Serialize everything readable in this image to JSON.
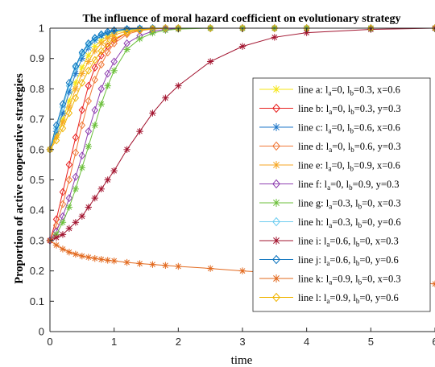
{
  "chart_data": {
    "type": "line",
    "title": "The influence of moral hazard coefficient on evolutionary strategy",
    "xlabel": "time",
    "ylabel": "Proportion of active cooperative strategies",
    "xlim": [
      0,
      6
    ],
    "ylim": [
      0,
      1
    ],
    "xticks": [
      "0",
      "1",
      "2",
      "3",
      "4",
      "5",
      "6"
    ],
    "yticks": [
      "0",
      "0.1",
      "0.2",
      "0.3",
      "0.4",
      "0.5",
      "0.6",
      "0.7",
      "0.8",
      "0.9",
      "1"
    ],
    "grid": false,
    "legend_position": "right",
    "x": [
      0,
      0.1,
      0.2,
      0.3,
      0.4,
      0.5,
      0.6,
      0.7,
      0.8,
      0.9,
      1.0,
      1.2,
      1.4,
      1.6,
      1.8,
      2.0,
      2.5,
      3.0,
      3.5,
      4.0,
      5.0,
      6.0
    ],
    "series": [
      {
        "name": "line a",
        "label_parts": [
          [
            "line a: l",
            ""
          ],
          [
            "a",
            "sub"
          ],
          [
            "=0, l",
            ""
          ],
          [
            "b",
            "sub"
          ],
          [
            "=0.3, x=0.6",
            ""
          ]
        ],
        "color": "#f5e614",
        "marker": "asterisk",
        "values": [
          0.6,
          0.65,
          0.7,
          0.76,
          0.82,
          0.87,
          0.91,
          0.94,
          0.96,
          0.975,
          0.985,
          0.993,
          0.997,
          0.999,
          1,
          1,
          1,
          1,
          1,
          1,
          1,
          1
        ]
      },
      {
        "name": "line b",
        "label_parts": [
          [
            "line b: l",
            ""
          ],
          [
            "a",
            "sub"
          ],
          [
            "=0, l",
            ""
          ],
          [
            "b",
            "sub"
          ],
          [
            "=0.3, y=0.3",
            ""
          ]
        ],
        "color": "#e8201f",
        "marker": "diamond",
        "values": [
          0.3,
          0.37,
          0.46,
          0.55,
          0.64,
          0.73,
          0.81,
          0.87,
          0.91,
          0.94,
          0.96,
          0.985,
          0.994,
          0.998,
          1,
          1,
          1,
          1,
          1,
          1,
          1,
          1
        ]
      },
      {
        "name": "line c",
        "label_parts": [
          [
            "line c: l",
            ""
          ],
          [
            "a",
            "sub"
          ],
          [
            "=0, l",
            ""
          ],
          [
            "b",
            "sub"
          ],
          [
            "=0.6, x=0.6",
            ""
          ]
        ],
        "color": "#1f77c8",
        "marker": "asterisk",
        "values": [
          0.6,
          0.66,
          0.72,
          0.79,
          0.85,
          0.9,
          0.935,
          0.96,
          0.975,
          0.985,
          0.99,
          0.996,
          0.999,
          1,
          1,
          1,
          1,
          1,
          1,
          1,
          1,
          1
        ]
      },
      {
        "name": "line d",
        "label_parts": [
          [
            "line d: l",
            ""
          ],
          [
            "a",
            "sub"
          ],
          [
            "=0, l",
            ""
          ],
          [
            "b",
            "sub"
          ],
          [
            "=0.6, y=0.3",
            ""
          ]
        ],
        "color": "#f07838",
        "marker": "diamond",
        "values": [
          0.3,
          0.35,
          0.42,
          0.5,
          0.59,
          0.68,
          0.76,
          0.83,
          0.88,
          0.92,
          0.95,
          0.98,
          0.992,
          0.997,
          1,
          1,
          1,
          1,
          1,
          1,
          1,
          1
        ]
      },
      {
        "name": "line e",
        "label_parts": [
          [
            "line e: l",
            ""
          ],
          [
            "a",
            "sub"
          ],
          [
            "=0, l",
            ""
          ],
          [
            "b",
            "sub"
          ],
          [
            "=0.9, x=0.6",
            ""
          ]
        ],
        "color": "#f5a623",
        "marker": "asterisk",
        "values": [
          0.6,
          0.64,
          0.69,
          0.74,
          0.8,
          0.85,
          0.89,
          0.925,
          0.95,
          0.967,
          0.978,
          0.99,
          0.996,
          0.999,
          1,
          1,
          1,
          1,
          1,
          1,
          1,
          1
        ]
      },
      {
        "name": "line f",
        "label_parts": [
          [
            "line f: l",
            ""
          ],
          [
            "a",
            "sub"
          ],
          [
            "=0, l",
            ""
          ],
          [
            "b",
            "sub"
          ],
          [
            "=0.9, y=0.3",
            ""
          ]
        ],
        "color": "#8e3fb0",
        "marker": "diamond",
        "values": [
          0.3,
          0.33,
          0.38,
          0.44,
          0.51,
          0.58,
          0.66,
          0.73,
          0.8,
          0.85,
          0.89,
          0.95,
          0.975,
          0.99,
          0.996,
          0.999,
          1,
          1,
          1,
          1,
          1,
          1
        ]
      },
      {
        "name": "line g",
        "label_parts": [
          [
            "line g: l",
            ""
          ],
          [
            "a",
            "sub"
          ],
          [
            "=0.3, l",
            ""
          ],
          [
            "b",
            "sub"
          ],
          [
            "=0, x=0.3",
            ""
          ]
        ],
        "color": "#6bbf3a",
        "marker": "asterisk",
        "values": [
          0.3,
          0.32,
          0.36,
          0.41,
          0.47,
          0.54,
          0.61,
          0.68,
          0.75,
          0.81,
          0.86,
          0.93,
          0.965,
          0.984,
          0.993,
          0.997,
          1,
          1,
          1,
          1,
          1,
          1
        ]
      },
      {
        "name": "line h",
        "label_parts": [
          [
            "line h: l",
            ""
          ],
          [
            "a",
            "sub"
          ],
          [
            "=0.3, l",
            ""
          ],
          [
            "b",
            "sub"
          ],
          [
            "=0, y=0.6",
            ""
          ]
        ],
        "color": "#6fcdf0",
        "marker": "diamond",
        "values": [
          0.6,
          0.67,
          0.74,
          0.81,
          0.87,
          0.915,
          0.945,
          0.965,
          0.978,
          0.987,
          0.992,
          0.997,
          0.999,
          1,
          1,
          1,
          1,
          1,
          1,
          1,
          1,
          1
        ]
      },
      {
        "name": "line i",
        "label_parts": [
          [
            "line i: l",
            ""
          ],
          [
            "a",
            "sub"
          ],
          [
            "=0.6, l",
            ""
          ],
          [
            "b",
            "sub"
          ],
          [
            "=0, x=0.3",
            ""
          ]
        ],
        "color": "#a2142f",
        "marker": "asterisk",
        "values": [
          0.3,
          0.31,
          0.32,
          0.34,
          0.36,
          0.38,
          0.41,
          0.44,
          0.47,
          0.5,
          0.53,
          0.6,
          0.66,
          0.72,
          0.77,
          0.81,
          0.89,
          0.94,
          0.97,
          0.985,
          0.996,
          1
        ]
      },
      {
        "name": "line j",
        "label_parts": [
          [
            "line j: l",
            ""
          ],
          [
            "a",
            "sub"
          ],
          [
            "=0.6, l",
            ""
          ],
          [
            "b",
            "sub"
          ],
          [
            "=0, y=0.6",
            ""
          ]
        ],
        "color": "#0b72bd",
        "marker": "diamond",
        "values": [
          0.6,
          0.68,
          0.75,
          0.82,
          0.875,
          0.92,
          0.95,
          0.968,
          0.98,
          0.988,
          0.993,
          0.997,
          0.999,
          1,
          1,
          1,
          1,
          1,
          1,
          1,
          1,
          1
        ]
      },
      {
        "name": "line k",
        "label_parts": [
          [
            "line k: l",
            ""
          ],
          [
            "a",
            "sub"
          ],
          [
            "=0.9, l",
            ""
          ],
          [
            "b",
            "sub"
          ],
          [
            "=0, x=0.3",
            ""
          ]
        ],
        "color": "#e2691e",
        "marker": "asterisk",
        "values": [
          0.3,
          0.285,
          0.272,
          0.262,
          0.255,
          0.249,
          0.245,
          0.241,
          0.238,
          0.235,
          0.233,
          0.228,
          0.224,
          0.221,
          0.218,
          0.215,
          0.208,
          0.2,
          0.193,
          0.186,
          0.172,
          0.157
        ]
      },
      {
        "name": "line l",
        "label_parts": [
          [
            "line l: l",
            ""
          ],
          [
            "a",
            "sub"
          ],
          [
            "=0.9, l",
            ""
          ],
          [
            "b",
            "sub"
          ],
          [
            "=0, y=0.6",
            ""
          ]
        ],
        "color": "#f0b400",
        "marker": "diamond",
        "values": [
          0.6,
          0.63,
          0.67,
          0.72,
          0.77,
          0.82,
          0.86,
          0.895,
          0.925,
          0.948,
          0.965,
          0.985,
          0.994,
          0.998,
          1,
          1,
          1,
          1,
          1,
          1,
          1,
          1
        ]
      }
    ]
  }
}
